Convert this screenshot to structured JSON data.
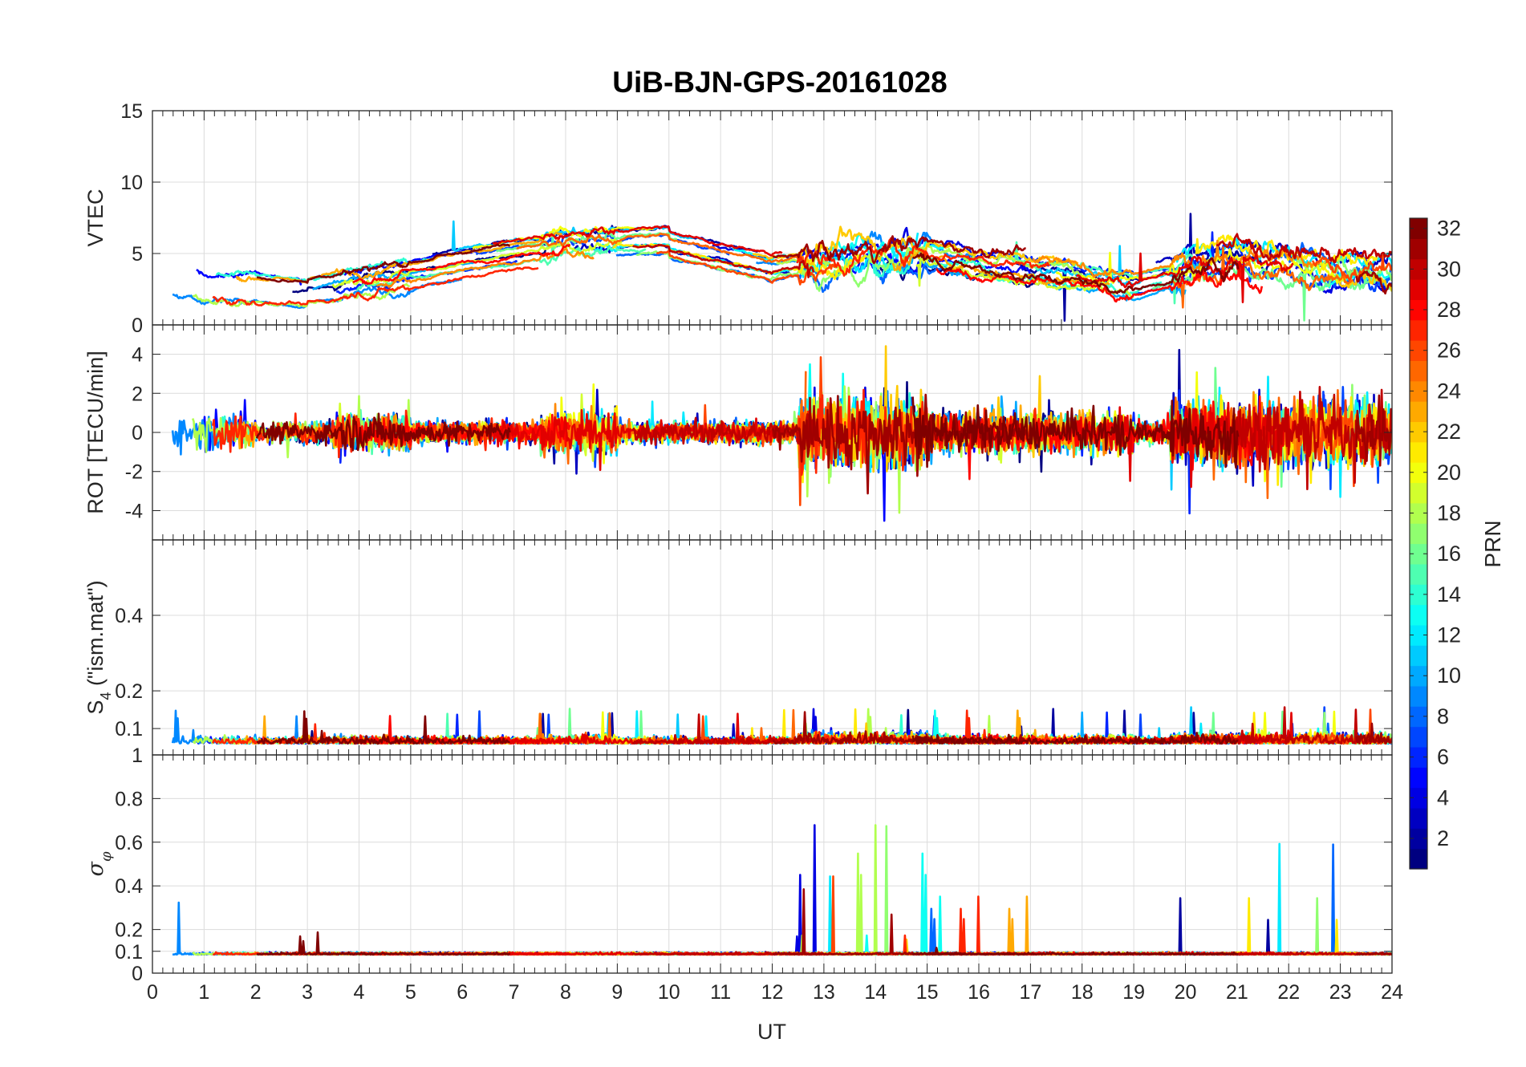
{
  "title": "UiB-BJN-GPS-20161028",
  "colors": {
    "background": "#ffffff",
    "axis": "#262626",
    "grid": "#dcdcdc"
  },
  "chart_data": {
    "type": "line",
    "title": "UiB-BJN-GPS-20161028",
    "xlabel": "UT",
    "xlim": [
      0,
      24
    ],
    "xticks": [
      0,
      1,
      2,
      3,
      4,
      5,
      6,
      7,
      8,
      9,
      10,
      11,
      12,
      13,
      14,
      15,
      16,
      17,
      18,
      19,
      20,
      21,
      22,
      23,
      24
    ],
    "grid": true,
    "panels": [
      {
        "id": "vtec",
        "ylabel": "VTEC",
        "ylim": [
          0,
          15
        ],
        "yticks": [
          0,
          5,
          10,
          15
        ],
        "series_note": "one trace per PRN (1-32), coloured by PRN"
      },
      {
        "id": "rot",
        "ylabel": "ROT [TECU/min]",
        "ylim": [
          -5.5,
          5.5
        ],
        "yticks": [
          -4,
          -2,
          0,
          2,
          4
        ],
        "series_note": "one trace per PRN (1-32), coloured by PRN"
      },
      {
        "id": "s4",
        "ylabel_main": "S",
        "ylabel_sub": "4",
        "ylabel_rest": " (\"ism.mat\")",
        "ylim": [
          0.03,
          0.6
        ],
        "yticks": [
          0.1,
          0.2,
          0.4
        ],
        "series_note": "one trace per PRN (1-32), coloured by PRN"
      },
      {
        "id": "sigma",
        "ylabel_main": "σ",
        "ylabel_sub": "φ",
        "ylim": [
          0,
          1
        ],
        "yticks": [
          0,
          0.1,
          0.2,
          0.4,
          0.6,
          0.8,
          1
        ],
        "series_note": "one trace per PRN (1-32), coloured by PRN"
      }
    ],
    "colorbar": {
      "label": "PRN",
      "range": [
        1,
        32
      ],
      "ticks": [
        2,
        4,
        6,
        8,
        10,
        12,
        14,
        16,
        18,
        20,
        22,
        24,
        26,
        28,
        30,
        32
      ],
      "colormap": "jet"
    }
  }
}
